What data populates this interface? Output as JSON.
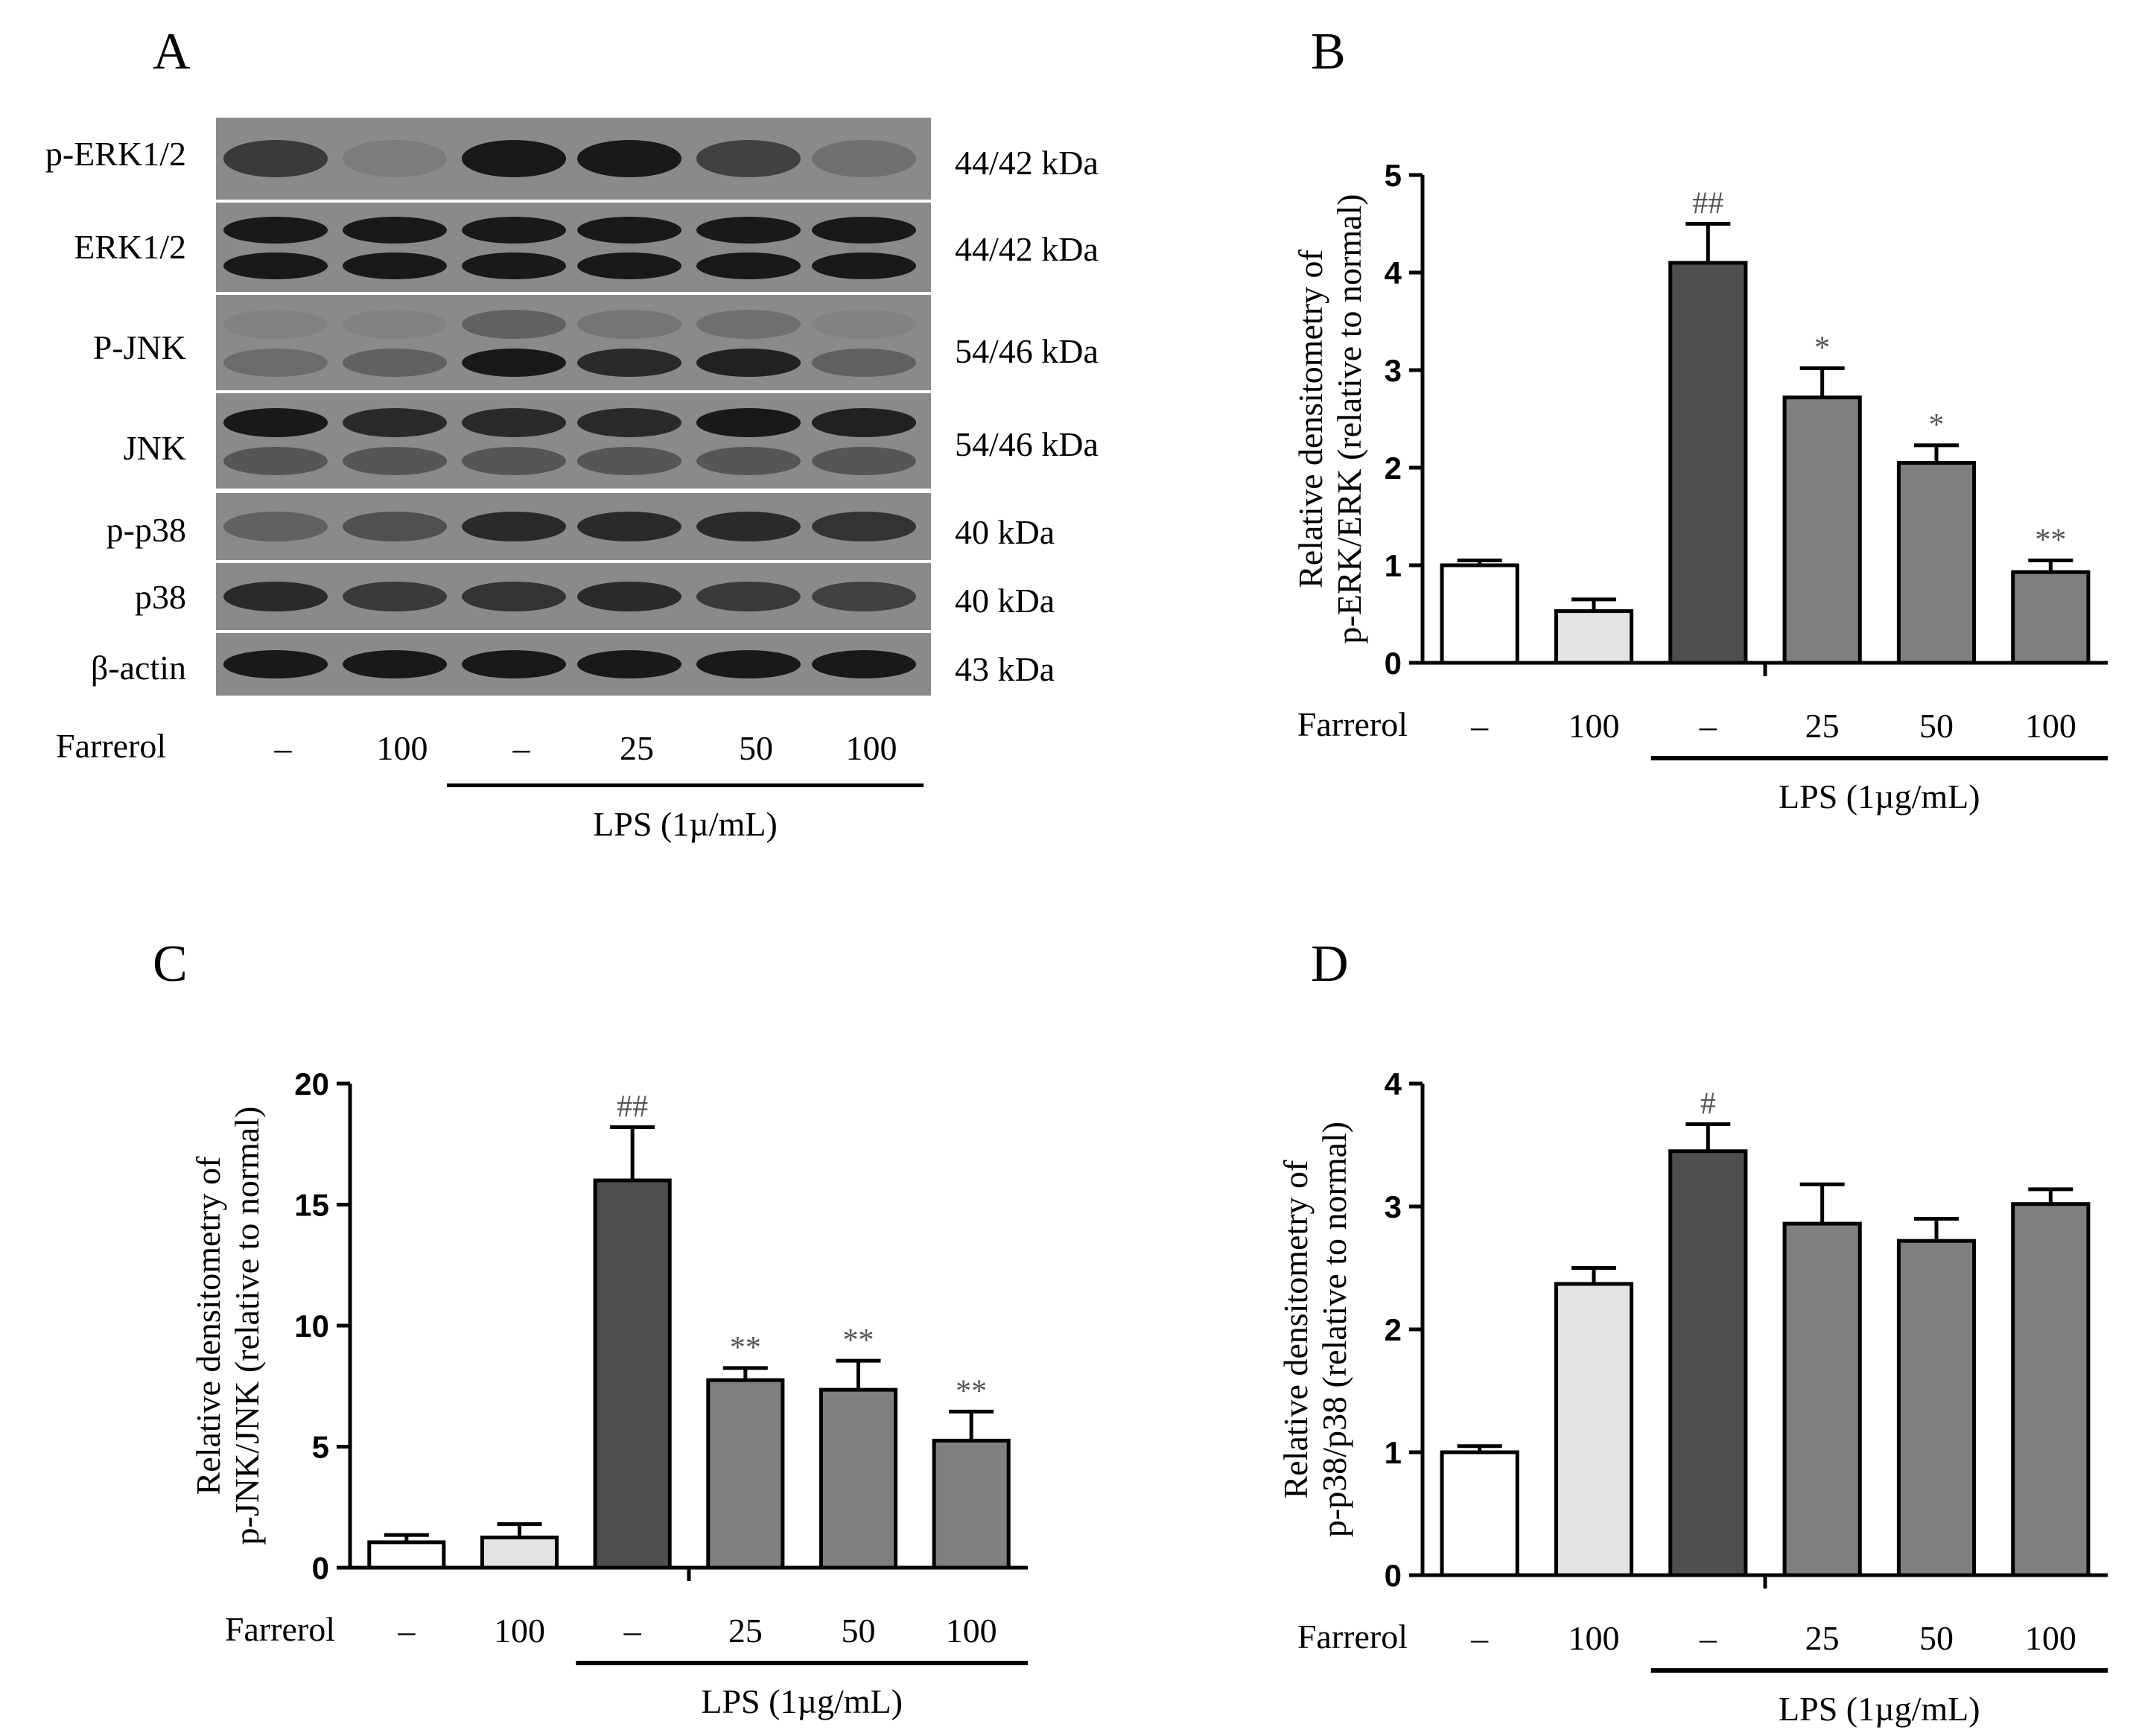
{
  "panel_labels": {
    "a": "A",
    "b": "B",
    "c": "C",
    "d": "D"
  },
  "blot_panel": {
    "rows": [
      {
        "name": "p-ERK1/2",
        "kda": "44/42 kDa"
      },
      {
        "name": "ERK1/2",
        "kda": "44/42 kDa"
      },
      {
        "name": "P-JNK",
        "kda": "54/46 kDa"
      },
      {
        "name": "JNK",
        "kda": "54/46 kDa"
      },
      {
        "name": "p-p38",
        "kda": "40 kDa"
      },
      {
        "name": "p38",
        "kda": "40 kDa"
      },
      {
        "name": "β-actin",
        "kda": "43 kDa"
      }
    ],
    "row_label": "Farrerol",
    "lanes": [
      "–",
      "100",
      "–",
      "25",
      "50",
      "100"
    ],
    "lps_label": "LPS (1µ/mL)"
  },
  "colors": {
    "ctrl": "#ffffff",
    "farrerol": "#e3e3e3",
    "lps": "#4f4f4f",
    "treat": "#7f7f7f",
    "sig": "#555555",
    "axis": "#000000"
  },
  "chart_data": [
    {
      "id": "B",
      "type": "bar",
      "ylabel": [
        "Relative densitometry of",
        "p-ERK/ERK (relative to normal)"
      ],
      "ylim": [
        0,
        5
      ],
      "yticks": [
        0,
        1,
        2,
        3,
        4,
        5
      ],
      "row_label": "Farrerol",
      "categories": [
        "–",
        "100",
        "–",
        "25",
        "50",
        "100"
      ],
      "values": [
        1.0,
        0.53,
        4.1,
        2.72,
        2.05,
        0.93
      ],
      "errors": [
        0.05,
        0.12,
        0.4,
        0.3,
        0.18,
        0.12
      ],
      "significance": [
        "",
        "",
        "##",
        "*",
        "*",
        "**"
      ],
      "lps_label": "LPS (1µg/mL)"
    },
    {
      "id": "C",
      "type": "bar",
      "ylabel": [
        "Relative densitometry of",
        "p-JNK/JNK (relative to normal)"
      ],
      "ylim": [
        0,
        20
      ],
      "yticks": [
        0,
        5,
        10,
        15,
        20
      ],
      "row_label": "Farrerol",
      "categories": [
        "–",
        "100",
        "–",
        "25",
        "50",
        "100"
      ],
      "values": [
        1.05,
        1.25,
        16.0,
        7.75,
        7.35,
        5.25
      ],
      "errors": [
        0.3,
        0.55,
        2.2,
        0.5,
        1.2,
        1.2
      ],
      "significance": [
        "",
        "",
        "##",
        "**",
        "**",
        "**"
      ],
      "lps_label": "LPS (1µg/mL)"
    },
    {
      "id": "D",
      "type": "bar",
      "ylabel": [
        "Relative densitometry of",
        "p-p38/p38 (relative to normal)"
      ],
      "ylim": [
        0,
        4
      ],
      "yticks": [
        0,
        1,
        2,
        3,
        4
      ],
      "row_label": "Farrerol",
      "categories": [
        "–",
        "100",
        "–",
        "25",
        "50",
        "100"
      ],
      "values": [
        1.0,
        2.37,
        3.45,
        2.86,
        2.72,
        3.02
      ],
      "errors": [
        0.05,
        0.13,
        0.22,
        0.32,
        0.18,
        0.12
      ],
      "significance": [
        "",
        "",
        "#",
        "",
        "",
        ""
      ],
      "lps_label": "LPS (1µg/mL)"
    }
  ]
}
